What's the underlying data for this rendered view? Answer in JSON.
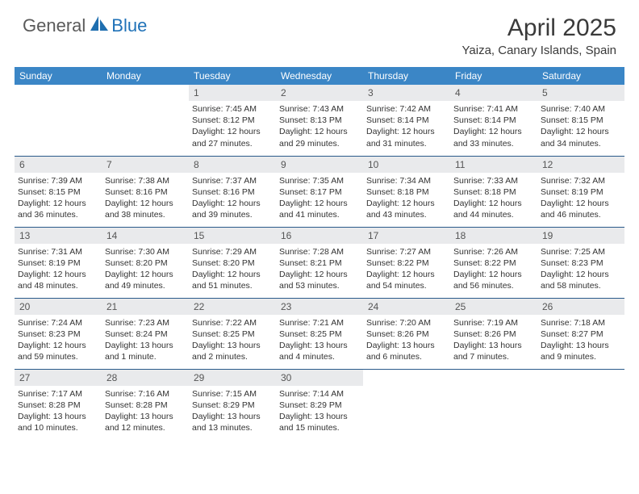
{
  "brand": {
    "general": "General",
    "blue": "Blue"
  },
  "title": "April 2025",
  "location": "Yaiza, Canary Islands, Spain",
  "colors": {
    "header_bg": "#3b86c6",
    "header_text": "#ffffff",
    "daynum_bg": "#e9eaec",
    "border": "#2a5a8a",
    "brand_blue": "#2072b8",
    "text": "#333333"
  },
  "dow": [
    "Sunday",
    "Monday",
    "Tuesday",
    "Wednesday",
    "Thursday",
    "Friday",
    "Saturday"
  ],
  "weeks": [
    [
      null,
      null,
      {
        "n": "1",
        "sr": "7:45 AM",
        "ss": "8:12 PM",
        "dl": "12 hours and 27 minutes."
      },
      {
        "n": "2",
        "sr": "7:43 AM",
        "ss": "8:13 PM",
        "dl": "12 hours and 29 minutes."
      },
      {
        "n": "3",
        "sr": "7:42 AM",
        "ss": "8:14 PM",
        "dl": "12 hours and 31 minutes."
      },
      {
        "n": "4",
        "sr": "7:41 AM",
        "ss": "8:14 PM",
        "dl": "12 hours and 33 minutes."
      },
      {
        "n": "5",
        "sr": "7:40 AM",
        "ss": "8:15 PM",
        "dl": "12 hours and 34 minutes."
      }
    ],
    [
      {
        "n": "6",
        "sr": "7:39 AM",
        "ss": "8:15 PM",
        "dl": "12 hours and 36 minutes."
      },
      {
        "n": "7",
        "sr": "7:38 AM",
        "ss": "8:16 PM",
        "dl": "12 hours and 38 minutes."
      },
      {
        "n": "8",
        "sr": "7:37 AM",
        "ss": "8:16 PM",
        "dl": "12 hours and 39 minutes."
      },
      {
        "n": "9",
        "sr": "7:35 AM",
        "ss": "8:17 PM",
        "dl": "12 hours and 41 minutes."
      },
      {
        "n": "10",
        "sr": "7:34 AM",
        "ss": "8:18 PM",
        "dl": "12 hours and 43 minutes."
      },
      {
        "n": "11",
        "sr": "7:33 AM",
        "ss": "8:18 PM",
        "dl": "12 hours and 44 minutes."
      },
      {
        "n": "12",
        "sr": "7:32 AM",
        "ss": "8:19 PM",
        "dl": "12 hours and 46 minutes."
      }
    ],
    [
      {
        "n": "13",
        "sr": "7:31 AM",
        "ss": "8:19 PM",
        "dl": "12 hours and 48 minutes."
      },
      {
        "n": "14",
        "sr": "7:30 AM",
        "ss": "8:20 PM",
        "dl": "12 hours and 49 minutes."
      },
      {
        "n": "15",
        "sr": "7:29 AM",
        "ss": "8:20 PM",
        "dl": "12 hours and 51 minutes."
      },
      {
        "n": "16",
        "sr": "7:28 AM",
        "ss": "8:21 PM",
        "dl": "12 hours and 53 minutes."
      },
      {
        "n": "17",
        "sr": "7:27 AM",
        "ss": "8:22 PM",
        "dl": "12 hours and 54 minutes."
      },
      {
        "n": "18",
        "sr": "7:26 AM",
        "ss": "8:22 PM",
        "dl": "12 hours and 56 minutes."
      },
      {
        "n": "19",
        "sr": "7:25 AM",
        "ss": "8:23 PM",
        "dl": "12 hours and 58 minutes."
      }
    ],
    [
      {
        "n": "20",
        "sr": "7:24 AM",
        "ss": "8:23 PM",
        "dl": "12 hours and 59 minutes."
      },
      {
        "n": "21",
        "sr": "7:23 AM",
        "ss": "8:24 PM",
        "dl": "13 hours and 1 minute."
      },
      {
        "n": "22",
        "sr": "7:22 AM",
        "ss": "8:25 PM",
        "dl": "13 hours and 2 minutes."
      },
      {
        "n": "23",
        "sr": "7:21 AM",
        "ss": "8:25 PM",
        "dl": "13 hours and 4 minutes."
      },
      {
        "n": "24",
        "sr": "7:20 AM",
        "ss": "8:26 PM",
        "dl": "13 hours and 6 minutes."
      },
      {
        "n": "25",
        "sr": "7:19 AM",
        "ss": "8:26 PM",
        "dl": "13 hours and 7 minutes."
      },
      {
        "n": "26",
        "sr": "7:18 AM",
        "ss": "8:27 PM",
        "dl": "13 hours and 9 minutes."
      }
    ],
    [
      {
        "n": "27",
        "sr": "7:17 AM",
        "ss": "8:28 PM",
        "dl": "13 hours and 10 minutes."
      },
      {
        "n": "28",
        "sr": "7:16 AM",
        "ss": "8:28 PM",
        "dl": "13 hours and 12 minutes."
      },
      {
        "n": "29",
        "sr": "7:15 AM",
        "ss": "8:29 PM",
        "dl": "13 hours and 13 minutes."
      },
      {
        "n": "30",
        "sr": "7:14 AM",
        "ss": "8:29 PM",
        "dl": "13 hours and 15 minutes."
      },
      null,
      null,
      null
    ]
  ],
  "labels": {
    "sunrise": "Sunrise:",
    "sunset": "Sunset:",
    "daylight": "Daylight:"
  }
}
